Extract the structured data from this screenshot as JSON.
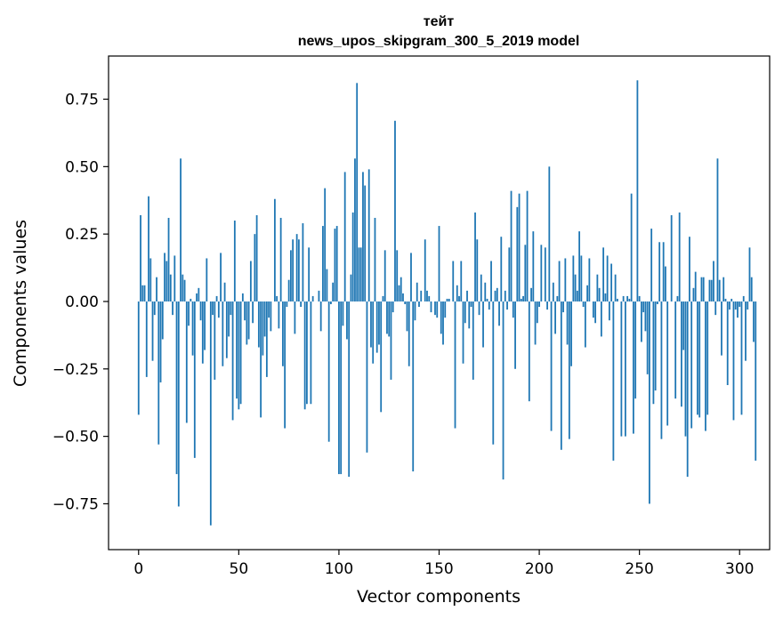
{
  "chart_data": {
    "type": "bar",
    "title_line1": "тейт",
    "title_line2": "news_upos_skipgram_300_5_2019 model",
    "xlabel": "Vector components",
    "ylabel": "Components values",
    "xlim": [
      -15,
      315
    ],
    "ylim": [
      -0.92,
      0.91
    ],
    "xticks": [
      0,
      50,
      100,
      150,
      200,
      250,
      300
    ],
    "xtick_labels": [
      "0",
      "50",
      "100",
      "150",
      "200",
      "250",
      "300"
    ],
    "yticks": [
      -0.75,
      -0.5,
      -0.25,
      0.0,
      0.25,
      0.5,
      0.75
    ],
    "ytick_labels": [
      "−0.75",
      "−0.50",
      "−0.25",
      "0.00",
      "0.25",
      "0.50",
      "0.75"
    ],
    "bar_color": "#1f77b4",
    "x_start": 0,
    "values": [
      -0.42,
      0.32,
      0.06,
      0.06,
      -0.28,
      0.39,
      0.16,
      -0.22,
      -0.05,
      0.09,
      -0.53,
      -0.3,
      -0.14,
      0.18,
      0.15,
      0.31,
      0.1,
      -0.05,
      0.17,
      -0.64,
      -0.76,
      0.53,
      0.1,
      0.08,
      -0.45,
      -0.09,
      0.01,
      -0.2,
      -0.58,
      0.03,
      0.05,
      -0.07,
      -0.23,
      -0.18,
      0.16,
      0.0,
      -0.83,
      -0.05,
      -0.29,
      0.02,
      -0.06,
      0.18,
      -0.24,
      0.07,
      -0.21,
      -0.13,
      -0.05,
      -0.44,
      0.3,
      -0.36,
      -0.4,
      -0.38,
      0.03,
      -0.07,
      -0.16,
      -0.14,
      0.15,
      -0.08,
      0.25,
      0.32,
      -0.17,
      -0.43,
      -0.2,
      -0.13,
      -0.28,
      -0.06,
      -0.11,
      0.0,
      0.38,
      0.02,
      -0.1,
      0.31,
      -0.24,
      -0.47,
      -0.02,
      0.08,
      0.19,
      0.23,
      -0.12,
      0.25,
      0.23,
      -0.02,
      0.29,
      -0.4,
      -0.38,
      0.2,
      -0.38,
      0.02,
      0.0,
      0.0,
      0.04,
      -0.11,
      0.28,
      0.42,
      0.12,
      -0.52,
      -0.01,
      0.07,
      0.27,
      0.28,
      -0.64,
      -0.64,
      -0.09,
      0.48,
      -0.14,
      -0.65,
      0.1,
      0.33,
      0.53,
      0.81,
      0.2,
      0.2,
      0.48,
      0.43,
      -0.56,
      0.49,
      -0.17,
      -0.23,
      0.31,
      -0.19,
      -0.16,
      -0.41,
      0.02,
      0.19,
      -0.12,
      -0.13,
      -0.29,
      -0.04,
      0.67,
      0.19,
      0.06,
      0.09,
      0.03,
      -0.01,
      -0.11,
      -0.24,
      0.18,
      -0.63,
      -0.07,
      0.07,
      -0.02,
      0.04,
      0.0,
      0.23,
      0.04,
      0.02,
      -0.04,
      0.0,
      -0.05,
      -0.06,
      0.28,
      -0.12,
      -0.16,
      -0.06,
      0.01,
      0.01,
      0.0,
      0.15,
      -0.47,
      0.06,
      0.02,
      0.15,
      -0.23,
      -0.08,
      0.04,
      -0.1,
      -0.02,
      -0.29,
      0.33,
      0.23,
      -0.05,
      0.1,
      -0.17,
      0.07,
      0.01,
      -0.03,
      0.15,
      -0.53,
      0.04,
      0.05,
      -0.09,
      0.24,
      -0.66,
      0.04,
      -0.03,
      0.2,
      0.41,
      -0.06,
      -0.25,
      0.35,
      0.4,
      0.01,
      0.02,
      0.21,
      0.41,
      -0.37,
      0.05,
      0.26,
      -0.16,
      -0.08,
      -0.02,
      0.21,
      0.0,
      0.2,
      -0.03,
      0.5,
      -0.48,
      0.07,
      -0.12,
      0.02,
      0.15,
      -0.55,
      -0.04,
      0.16,
      -0.16,
      -0.51,
      -0.24,
      0.17,
      0.1,
      0.04,
      0.26,
      0.17,
      -0.02,
      -0.17,
      0.06,
      0.16,
      0.0,
      -0.06,
      -0.08,
      0.1,
      0.05,
      -0.13,
      0.2,
      0.03,
      0.17,
      -0.07,
      0.14,
      -0.59,
      0.1,
      0.01,
      0.0,
      -0.5,
      0.02,
      -0.5,
      0.02,
      0.01,
      0.4,
      -0.49,
      -0.36,
      0.82,
      0.02,
      -0.15,
      -0.04,
      -0.11,
      -0.27,
      -0.75,
      0.27,
      -0.38,
      -0.33,
      -0.01,
      0.22,
      -0.51,
      0.22,
      0.13,
      -0.46,
      0.0,
      0.32,
      0.0,
      -0.36,
      0.02,
      0.33,
      -0.39,
      -0.18,
      -0.5,
      -0.65,
      0.24,
      -0.47,
      0.05,
      0.11,
      -0.42,
      -0.43,
      0.09,
      0.09,
      -0.48,
      -0.42,
      0.08,
      0.08,
      0.15,
      -0.05,
      0.53,
      0.08,
      -0.2,
      0.09,
      0.01,
      -0.31,
      -0.03,
      0.01,
      -0.44,
      -0.03,
      -0.06,
      -0.02,
      -0.42,
      0.02,
      -0.22,
      -0.03,
      0.2,
      0.09,
      -0.15,
      -0.59,
      0.0
    ]
  }
}
